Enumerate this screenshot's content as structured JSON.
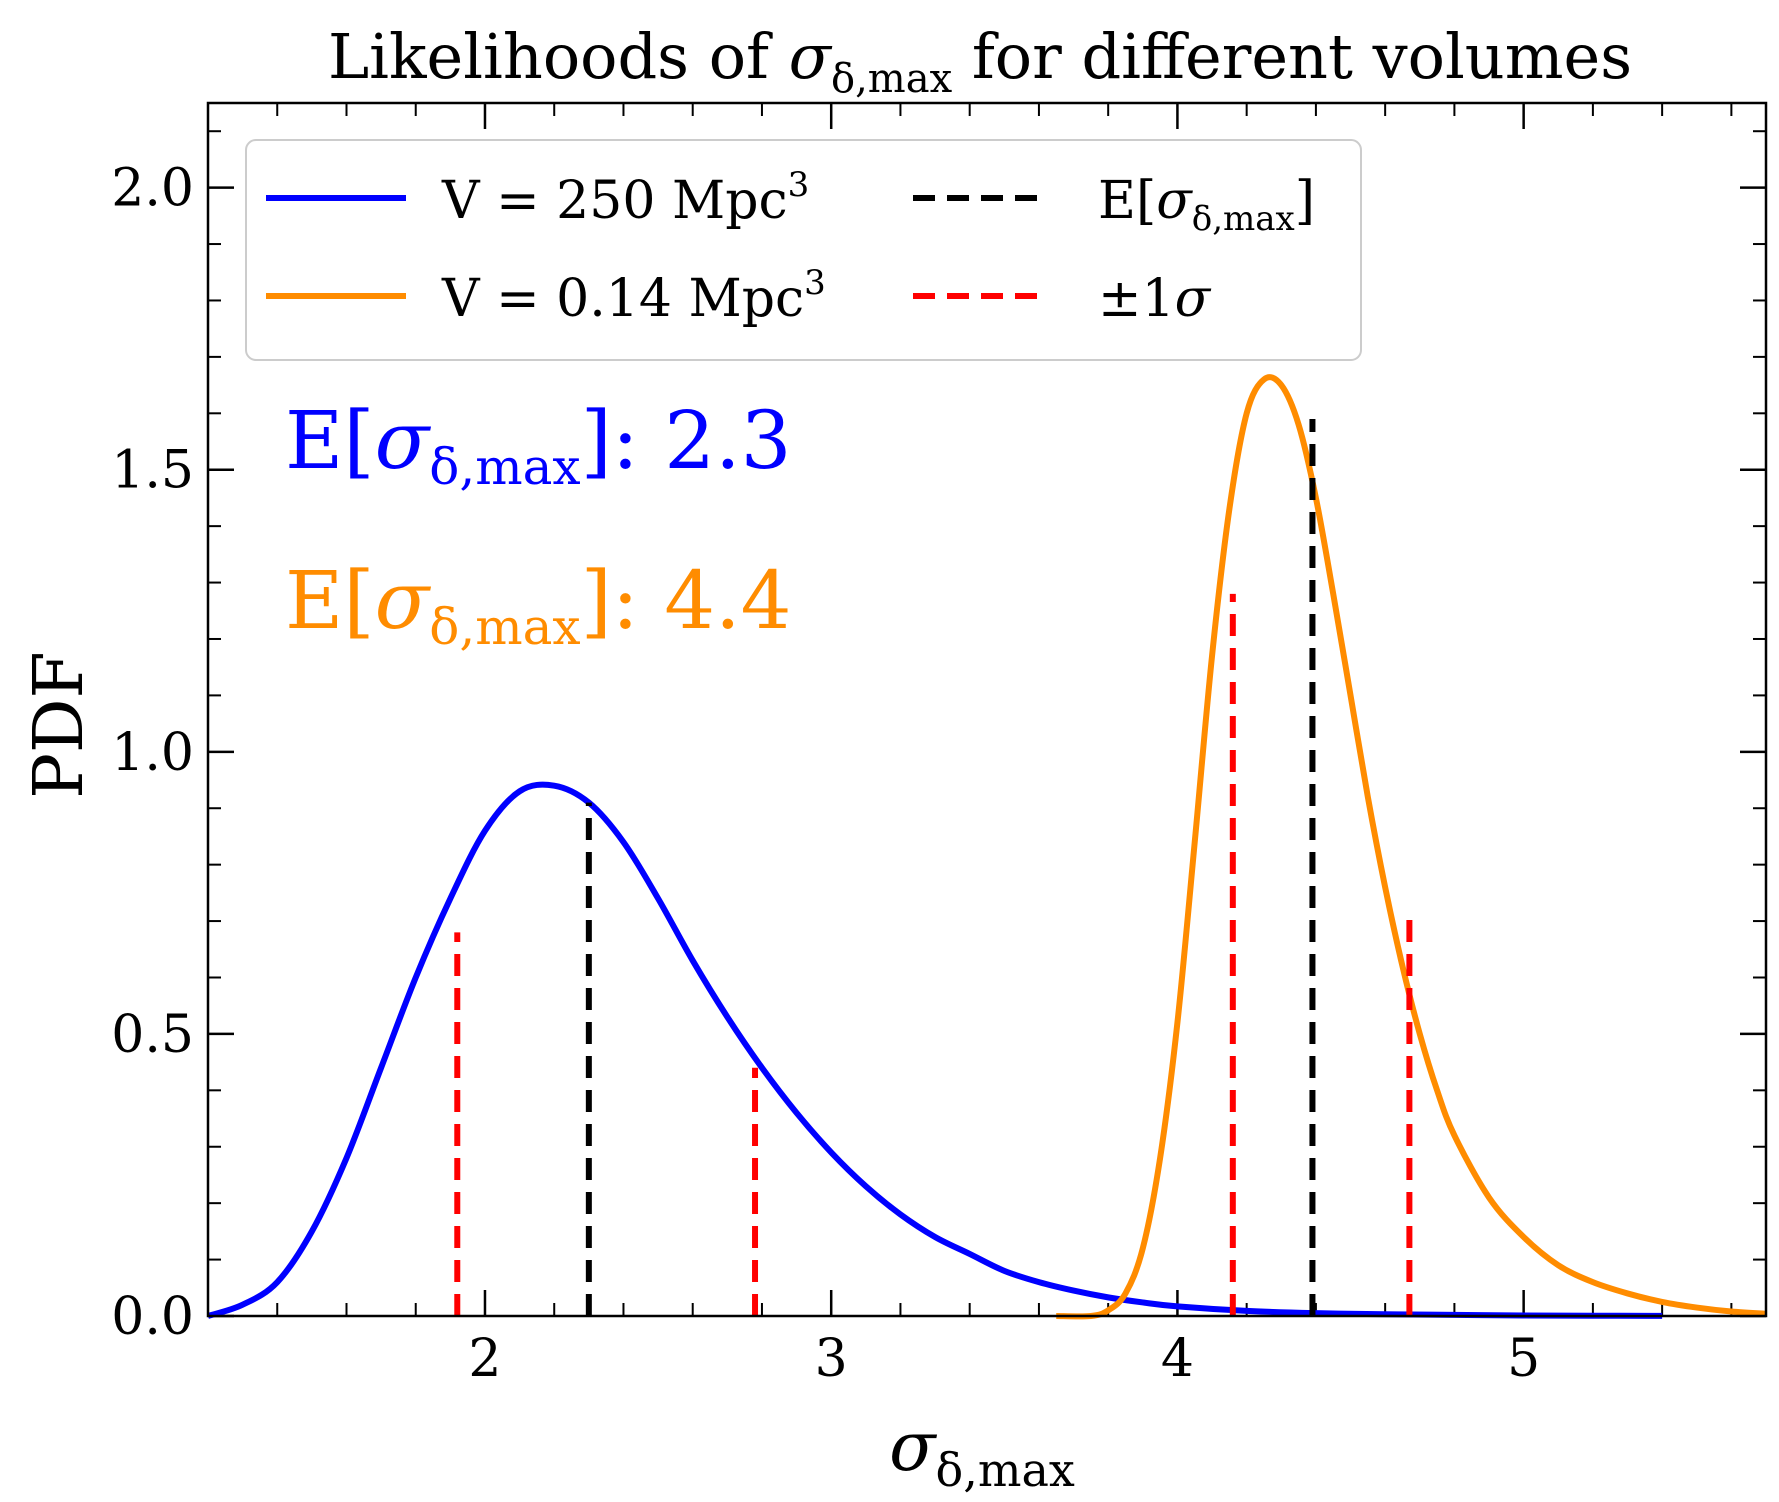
{
  "chart_data": {
    "type": "line",
    "title": {
      "pre": "Likelihoods of ",
      "sym": "σ",
      "sub": "δ,max",
      "post": " for different volumes"
    },
    "xlabel": {
      "sym": "σ",
      "sub": "δ,max"
    },
    "ylabel": "PDF",
    "xlim": [
      1.2,
      5.7
    ],
    "ylim": [
      0.0,
      2.15
    ],
    "x_ticks": [
      "2",
      "3",
      "4",
      "5"
    ],
    "x_tick_values": [
      2,
      3,
      4,
      5
    ],
    "y_ticks": [
      "0.0",
      "0.5",
      "1.0",
      "1.5",
      "2.0"
    ],
    "y_tick_values": [
      0.0,
      0.5,
      1.0,
      1.5,
      2.0
    ],
    "grid": false,
    "legend_position": "top-left",
    "legend": [
      {
        "label": "V = 250 Mpc",
        "sup": "3",
        "color": "#0000ff",
        "style": "solid"
      },
      {
        "label": "V = 0.14 Mpc",
        "sup": "3",
        "color": "#ff8c00",
        "style": "solid"
      },
      {
        "label": "E[",
        "sym": "σ",
        "sub": "δ,max",
        "post": "]",
        "color": "#000000",
        "style": "dashed"
      },
      {
        "label": "±1",
        "sym": "σ",
        "color": "#ff0000",
        "style": "dashed"
      }
    ],
    "annotations": [
      {
        "pre": "E[",
        "sym": "σ",
        "sub": "δ,max",
        "post": "]: 2.3",
        "color": "#0000ff"
      },
      {
        "pre": "E[",
        "sym": "σ",
        "sub": "δ,max",
        "post": "]: 4.4",
        "color": "#ff8c00"
      }
    ],
    "series": [
      {
        "name": "V = 250 Mpc3",
        "color": "#0000ff",
        "x": [
          1.2,
          1.3,
          1.4,
          1.5,
          1.6,
          1.7,
          1.8,
          1.9,
          2.0,
          2.1,
          2.2,
          2.3,
          2.4,
          2.5,
          2.6,
          2.7,
          2.8,
          2.9,
          3.0,
          3.1,
          3.2,
          3.3,
          3.4,
          3.5,
          3.6,
          3.7,
          3.8,
          3.9,
          4.0,
          4.2,
          4.4,
          4.6,
          4.8,
          5.0,
          5.2,
          5.4
        ],
        "y": [
          0.0,
          0.02,
          0.06,
          0.15,
          0.28,
          0.44,
          0.6,
          0.74,
          0.86,
          0.93,
          0.94,
          0.91,
          0.84,
          0.74,
          0.63,
          0.53,
          0.44,
          0.36,
          0.29,
          0.23,
          0.18,
          0.14,
          0.11,
          0.08,
          0.06,
          0.045,
          0.033,
          0.024,
          0.017,
          0.009,
          0.005,
          0.003,
          0.002,
          0.001,
          0.0005,
          0.0002
        ]
      },
      {
        "name": "V = 0.14 Mpc3",
        "color": "#ff8c00",
        "x": [
          3.65,
          3.75,
          3.8,
          3.85,
          3.9,
          3.95,
          4.0,
          4.05,
          4.1,
          4.15,
          4.2,
          4.25,
          4.3,
          4.35,
          4.4,
          4.45,
          4.5,
          4.55,
          4.6,
          4.65,
          4.7,
          4.75,
          4.8,
          4.9,
          5.0,
          5.1,
          5.2,
          5.3,
          5.4,
          5.5,
          5.6,
          5.7
        ],
        "y": [
          0.0,
          0.0,
          0.01,
          0.04,
          0.12,
          0.28,
          0.52,
          0.84,
          1.17,
          1.43,
          1.6,
          1.66,
          1.65,
          1.58,
          1.45,
          1.28,
          1.1,
          0.92,
          0.76,
          0.62,
          0.5,
          0.4,
          0.32,
          0.21,
          0.14,
          0.09,
          0.06,
          0.04,
          0.025,
          0.015,
          0.008,
          0.004
        ]
      }
    ],
    "markers": [
      {
        "kind": "mean",
        "series": "V = 250 Mpc3",
        "x": 2.3,
        "y": 0.91,
        "color": "#000000"
      },
      {
        "kind": "sigma",
        "series": "V = 250 Mpc3",
        "x": 1.92,
        "y": 0.68,
        "color": "#ff0000"
      },
      {
        "kind": "sigma",
        "series": "V = 250 Mpc3",
        "x": 2.78,
        "y": 0.44,
        "color": "#ff0000"
      },
      {
        "kind": "mean",
        "series": "V = 0.14 Mpc3",
        "x": 4.39,
        "y": 1.59,
        "color": "#000000"
      },
      {
        "kind": "sigma",
        "series": "V = 0.14 Mpc3",
        "x": 4.16,
        "y": 1.28,
        "color": "#ff0000"
      },
      {
        "kind": "sigma",
        "series": "V = 0.14 Mpc3",
        "x": 4.67,
        "y": 0.71,
        "color": "#ff0000"
      }
    ]
  }
}
